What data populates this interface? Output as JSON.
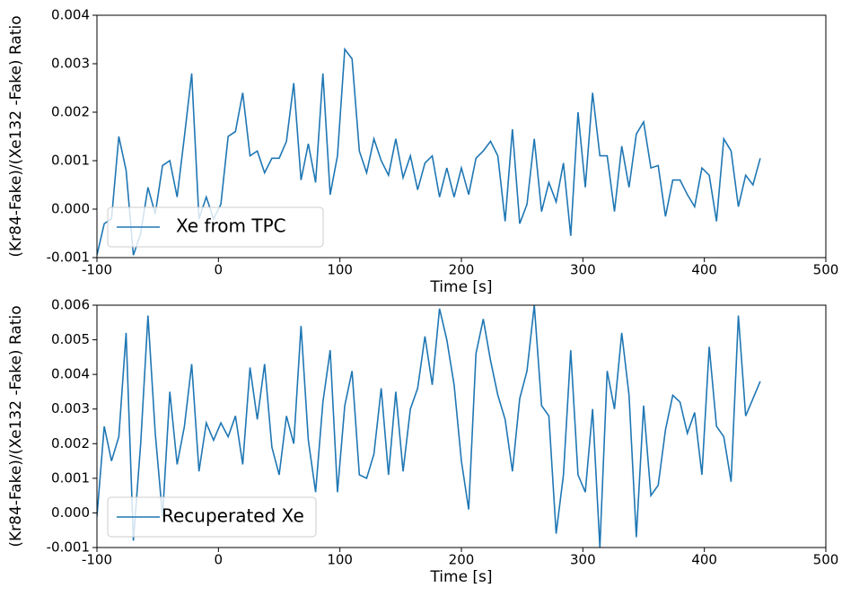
{
  "chart_data": [
    {
      "type": "line",
      "xlabel": "Time [s]",
      "ylabel": "(Kr84-Fake)/(Xe132 -Fake) Ratio",
      "x": [
        -100,
        -94,
        -88,
        -82,
        -76,
        -70,
        -64,
        -58,
        -52,
        -46,
        -40,
        -34,
        -28,
        -22,
        -16,
        -10,
        -4,
        2,
        8,
        14,
        20,
        26,
        32,
        38,
        44,
        50,
        56,
        62,
        68,
        74,
        80,
        86,
        92,
        98,
        104,
        110,
        116,
        122,
        128,
        134,
        140,
        146,
        152,
        158,
        164,
        170,
        176,
        182,
        188,
        194,
        200,
        206,
        212,
        218,
        224,
        230,
        236,
        242,
        248,
        254,
        260,
        266,
        272,
        278,
        284,
        290,
        296,
        302,
        308,
        314,
        320,
        326,
        332,
        338,
        344,
        350,
        356,
        362,
        368,
        374,
        380,
        386,
        392,
        398,
        404,
        410,
        416,
        422,
        428,
        434,
        440,
        446
      ],
      "series": [
        {
          "name": "Xe from TPC",
          "color": "#1f77b4",
          "values": [
            -0.00095,
            -0.0003,
            -0.0002,
            0.0015,
            0.0008,
            -0.00095,
            -0.0005,
            0.00045,
            -0.0001,
            0.0009,
            0.001,
            0.00025,
            0.0015,
            0.0028,
            -0.0002,
            0.00025,
            -0.0002,
            0.0001,
            0.0015,
            0.0016,
            0.0024,
            0.0011,
            0.0012,
            0.00075,
            0.00105,
            0.00105,
            0.0014,
            0.0026,
            0.0006,
            0.00135,
            0.00055,
            0.0028,
            0.0003,
            0.0011,
            0.0033,
            0.0031,
            0.0012,
            0.00075,
            0.00145,
            0.001,
            0.0007,
            0.00145,
            0.00065,
            0.0011,
            0.0004,
            0.00095,
            0.0011,
            0.00025,
            0.00085,
            0.00025,
            0.00085,
            0.0003,
            0.00105,
            0.0012,
            0.0014,
            0.0011,
            -0.00025,
            0.00165,
            -0.0003,
            0.0001,
            0.00145,
            -5e-05,
            0.00055,
            0.00015,
            0.00095,
            -0.00055,
            0.002,
            0.00045,
            0.0024,
            0.0011,
            0.0011,
            -5e-05,
            0.0013,
            0.00045,
            0.00155,
            0.0018,
            0.00085,
            0.0009,
            -0.00015,
            0.0006,
            0.0006,
            0.0003,
            5e-05,
            0.00085,
            0.0007,
            -0.00025,
            0.00145,
            0.0012,
            5e-05,
            0.0007,
            0.0005,
            0.00105
          ]
        }
      ],
      "xlim": [
        -100,
        500
      ],
      "xticks": [
        -100,
        0,
        100,
        200,
        300,
        400,
        500
      ],
      "ylim": [
        -0.001,
        0.004
      ],
      "yticks": [
        -0.001,
        {
          "value": 0,
          "label": "0.000"
        },
        0.001,
        0.002,
        0.003,
        0.004
      ],
      "legend": "lower left"
    },
    {
      "type": "line",
      "xlabel": "Time [s]",
      "ylabel": "(Kr84-Fake)/(Xe132 -Fake) Ratio",
      "x": [
        -100,
        -94,
        -88,
        -82,
        -76,
        -70,
        -64,
        -58,
        -52,
        -46,
        -40,
        -34,
        -28,
        -22,
        -16,
        -10,
        -4,
        2,
        8,
        14,
        20,
        26,
        32,
        38,
        44,
        50,
        56,
        62,
        68,
        74,
        80,
        86,
        92,
        98,
        104,
        110,
        116,
        122,
        128,
        134,
        140,
        146,
        152,
        158,
        164,
        170,
        176,
        182,
        188,
        194,
        200,
        206,
        212,
        218,
        224,
        230,
        236,
        242,
        248,
        254,
        260,
        266,
        272,
        278,
        284,
        290,
        296,
        302,
        308,
        314,
        320,
        326,
        332,
        338,
        344,
        350,
        356,
        362,
        368,
        374,
        380,
        386,
        392,
        398,
        404,
        410,
        416,
        422,
        428,
        434,
        440,
        446
      ],
      "series": [
        {
          "name": "Recuperated Xe",
          "color": "#1f77b4",
          "values": [
            -0.0001,
            0.0025,
            0.0015,
            0.0022,
            0.0052,
            -0.0008,
            0.002,
            0.0057,
            0.0023,
            -0.0001,
            0.0035,
            0.0014,
            0.0025,
            0.0043,
            0.0012,
            0.0026,
            0.0021,
            0.0026,
            0.0022,
            0.0028,
            0.0014,
            0.0042,
            0.0027,
            0.0043,
            0.0019,
            0.0011,
            0.0028,
            0.002,
            0.0054,
            0.0021,
            0.0006,
            0.0032,
            0.0047,
            0.0006,
            0.0031,
            0.0041,
            0.0011,
            0.001,
            0.0017,
            0.0036,
            0.0011,
            0.0035,
            0.0012,
            0.003,
            0.0036,
            0.0051,
            0.0037,
            0.0059,
            0.005,
            0.0037,
            0.0015,
            0.0001,
            0.0046,
            0.0056,
            0.0044,
            0.0034,
            0.0027,
            0.0012,
            0.0033,
            0.0041,
            0.006,
            0.0031,
            0.0028,
            -0.0006,
            0.0011,
            0.0047,
            0.0011,
            0.0006,
            0.003,
            -0.001,
            0.0041,
            0.003,
            0.0052,
            0.0034,
            -0.0007,
            0.0031,
            0.0005,
            0.0008,
            0.0024,
            0.0034,
            0.0032,
            0.0023,
            0.0029,
            0.0011,
            0.0048,
            0.0025,
            0.0022,
            0.0009,
            0.0057,
            0.0028,
            0.0033,
            0.0038
          ]
        }
      ],
      "xlim": [
        -100,
        500
      ],
      "xticks": [
        -100,
        0,
        100,
        200,
        300,
        400,
        500
      ],
      "ylim": [
        -0.001,
        0.006
      ],
      "yticks": [
        -0.001,
        {
          "value": 0,
          "label": "0.000"
        },
        0.001,
        0.002,
        0.003,
        0.004,
        0.005,
        0.006
      ],
      "legend": "lower left"
    }
  ]
}
